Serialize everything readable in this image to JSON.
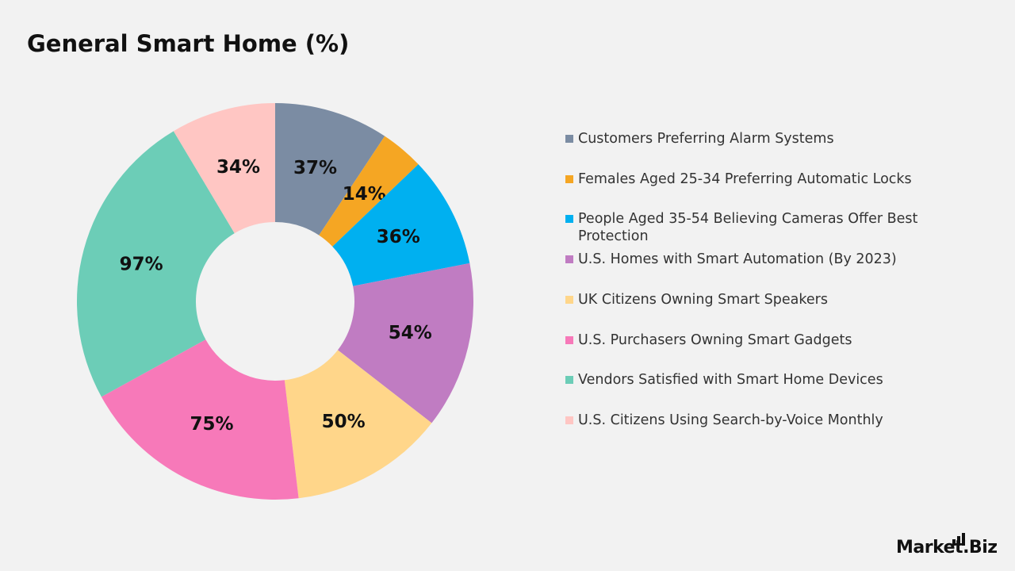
{
  "chart_data": {
    "type": "donut",
    "title": "General Smart Home (%)",
    "categories": [
      "Customers Preferring Alarm Systems",
      "Females Aged 25-34 Preferring Automatic Locks",
      "People Aged 35-54 Believing Cameras Offer Best Protection",
      "U.S. Homes with Smart Automation (By 2023)",
      "UK Citizens Owning Smart Speakers",
      "U.S. Purchasers Owning Smart Gadgets",
      "Vendors Satisfied with Smart Home Devices",
      "U.S. Citizens Using Search-by-Voice Monthly"
    ],
    "values": [
      37,
      14,
      36,
      54,
      50,
      75,
      97,
      34
    ],
    "value_labels": [
      "37%",
      "14%",
      "36%",
      "54%",
      "50%",
      "75%",
      "97%",
      "34%"
    ],
    "colors": [
      "#7b8ca3",
      "#f5a623",
      "#00b0f0",
      "#c07cc2",
      "#ffd68a",
      "#f779b9",
      "#6ccdb7",
      "#ffc6c3"
    ],
    "legend": "right"
  },
  "brand": "Market.Biz"
}
